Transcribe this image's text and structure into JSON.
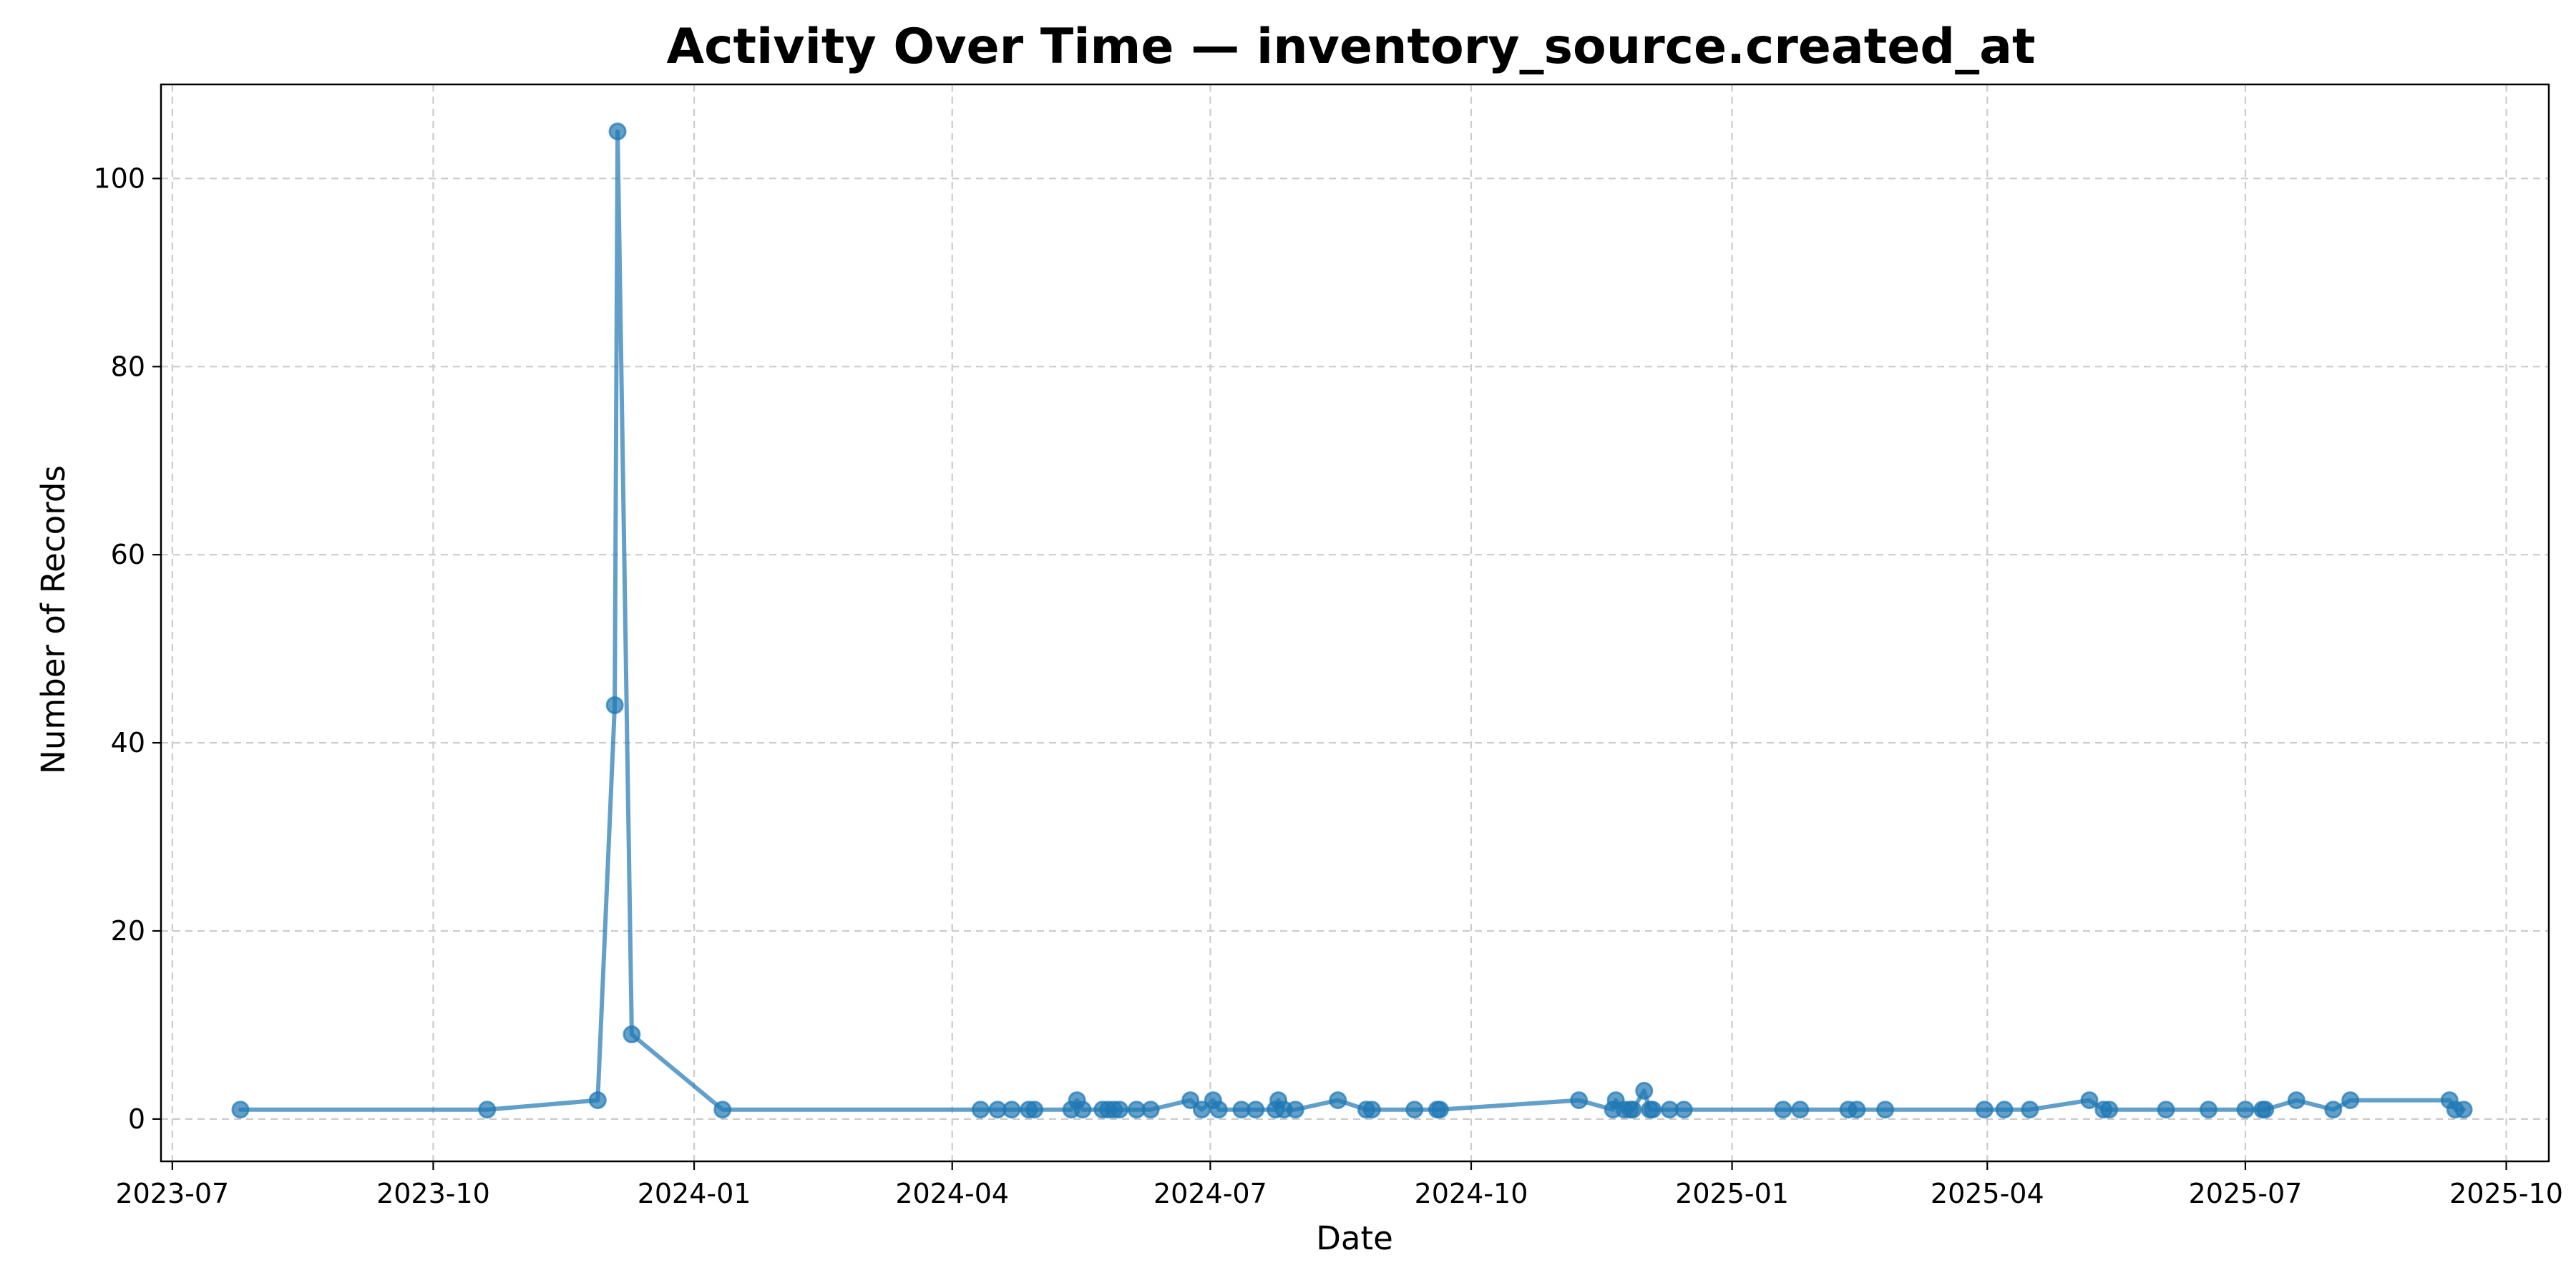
{
  "chart_data": {
    "type": "line",
    "title": "Activity Over Time — inventory_source.created_at",
    "xlabel": "Date",
    "ylabel": "Number of Records",
    "x_type": "date",
    "xlim": [
      "2023-06-27",
      "2025-10-16"
    ],
    "ylim": [
      -4.5,
      110
    ],
    "x_ticks": [
      "2023-07-01",
      "2023-10-01",
      "2024-01-01",
      "2024-04-01",
      "2024-07-01",
      "2024-10-01",
      "2025-01-01",
      "2025-04-01",
      "2025-07-01",
      "2025-10-01"
    ],
    "x_tick_labels": [
      "2023-07",
      "2023-10",
      "2024-01",
      "2024-04",
      "2024-07",
      "2024-10",
      "2025-01",
      "2025-04",
      "2025-07",
      "2025-10"
    ],
    "y_ticks": [
      0,
      20,
      40,
      60,
      80,
      100
    ],
    "y_tick_labels": [
      "0",
      "20",
      "40",
      "60",
      "80",
      "100"
    ],
    "grid": true,
    "color": "#1f77b4",
    "series": [
      {
        "x": [
          "2023-07-25",
          "2023-10-20",
          "2023-11-28",
          "2023-12-04",
          "2023-12-05",
          "2023-12-10",
          "2024-01-11",
          "2024-04-11",
          "2024-04-17",
          "2024-04-22",
          "2024-04-28",
          "2024-04-30",
          "2024-05-13",
          "2024-05-15",
          "2024-05-17",
          "2024-05-24",
          "2024-05-26",
          "2024-05-28",
          "2024-05-30",
          "2024-06-05",
          "2024-06-10",
          "2024-06-24",
          "2024-06-28",
          "2024-07-02",
          "2024-07-04",
          "2024-07-12",
          "2024-07-17",
          "2024-07-24",
          "2024-07-25",
          "2024-07-27",
          "2024-07-31",
          "2024-08-15",
          "2024-08-25",
          "2024-08-27",
          "2024-09-11",
          "2024-09-19",
          "2024-09-20",
          "2024-11-08",
          "2024-11-20",
          "2024-11-21",
          "2024-11-24",
          "2024-11-26",
          "2024-11-27",
          "2024-12-01",
          "2024-12-03",
          "2024-12-04",
          "2024-12-10",
          "2024-12-15",
          "2025-01-19",
          "2025-01-25",
          "2025-02-11",
          "2025-02-14",
          "2025-02-24",
          "2025-03-31",
          "2025-04-07",
          "2025-04-16",
          "2025-05-07",
          "2025-05-12",
          "2025-05-14",
          "2025-06-03",
          "2025-06-18",
          "2025-07-01",
          "2025-07-07",
          "2025-07-08",
          "2025-07-19",
          "2025-08-01",
          "2025-08-07",
          "2025-09-11",
          "2025-09-13",
          "2025-09-16"
        ],
        "y": [
          1,
          1,
          2,
          44,
          105,
          9,
          1,
          1,
          1,
          1,
          1,
          1,
          1,
          2,
          1,
          1,
          1,
          1,
          1,
          1,
          1,
          2,
          1,
          2,
          1,
          1,
          1,
          1,
          2,
          1,
          1,
          2,
          1,
          1,
          1,
          1,
          1,
          2,
          1,
          2,
          1,
          1,
          1,
          3,
          1,
          1,
          1,
          1,
          1,
          1,
          1,
          1,
          1,
          1,
          1,
          1,
          2,
          1,
          1,
          1,
          1,
          1,
          1,
          1,
          2,
          1,
          2,
          2,
          1,
          1
        ]
      }
    ]
  }
}
